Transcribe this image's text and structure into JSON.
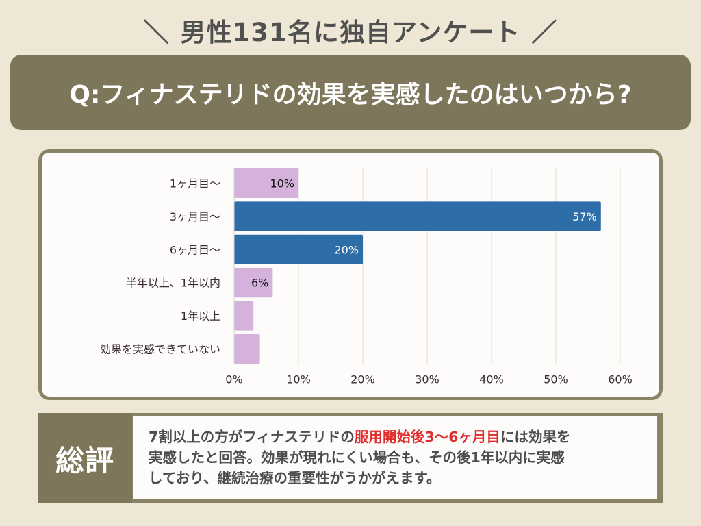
{
  "headline": {
    "left_mark": "＼",
    "text": "男性131名に独自アンケート",
    "right_mark": "／"
  },
  "question": "Q:フィナステリドの効果を実感したのはいつから?",
  "colors": {
    "background": "#efe7d6",
    "banner": "#7d765a",
    "card_border": "#898366",
    "bar_highlight": "#2e6ea8",
    "bar_normal": "#d5b2dc",
    "accent_red": "#e02b2b"
  },
  "chart_data": {
    "type": "bar",
    "orientation": "horizontal",
    "categories": [
      "1ヶ月目〜",
      "3ヶ月目〜",
      "6ヶ月目〜",
      "半年以上、1年以内",
      "1年以上",
      "効果を実感できていない"
    ],
    "values": [
      10,
      57,
      20,
      6,
      3,
      4
    ],
    "data_labels": [
      "10%",
      "57%",
      "20%",
      "6%",
      "",
      ""
    ],
    "highlight": [
      false,
      true,
      true,
      false,
      false,
      false
    ],
    "xlim": [
      0,
      60
    ],
    "xticks": [
      0,
      10,
      20,
      30,
      40,
      50,
      60
    ],
    "xtick_labels": [
      "0%",
      "10%",
      "20%",
      "30%",
      "40%",
      "50%",
      "60%"
    ],
    "grid": true,
    "unit": "%"
  },
  "summary": {
    "label": "総評",
    "text_before": "7割以上の方がフィナステリドの",
    "text_highlight": "服用開始後3〜6ヶ月目",
    "text_after_line1": "には効果を",
    "line2": "実感したと回答。効果が現れにくい場合も、その後1年以内に実感",
    "line3": "しており、継続治療の重要性がうかがえます。"
  }
}
